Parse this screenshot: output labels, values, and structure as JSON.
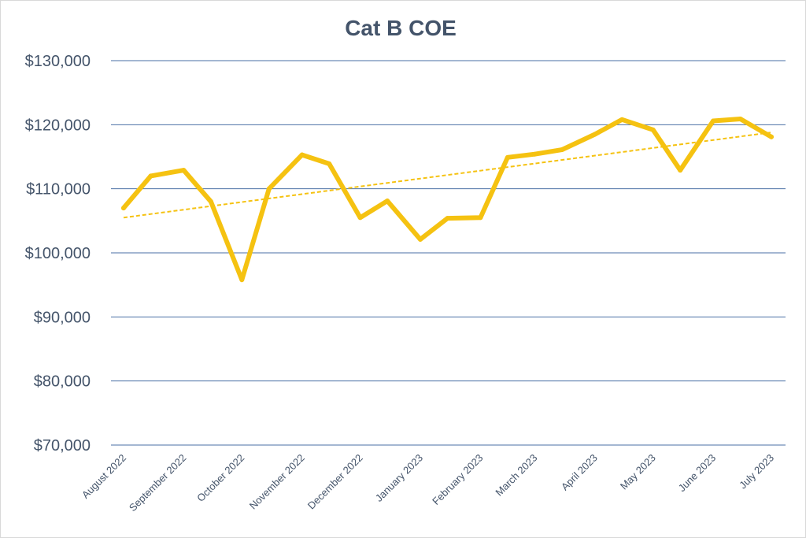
{
  "chart_data": {
    "type": "line",
    "title": "Cat B COE",
    "xlabel": "",
    "ylabel": "",
    "ylim": [
      70000,
      130000
    ],
    "yticks": [
      70000,
      80000,
      90000,
      100000,
      110000,
      120000,
      130000
    ],
    "ytick_labels": [
      "$70,000",
      "$80,000",
      "$90,000",
      "$100,000",
      "$110,000",
      "$120,000",
      "$130,000"
    ],
    "grid": true,
    "legend": "none",
    "colors": {
      "series": "#f5c211",
      "grid": "#4a6fa5",
      "text": "#44546a",
      "trend": "#f5c211"
    },
    "x": [
      "2022-08-01",
      "2022-08-15",
      "2022-09-01",
      "2022-09-15",
      "2022-10-01",
      "2022-10-15",
      "2022-11-01",
      "2022-11-15",
      "2022-12-01",
      "2022-12-15",
      "2023-01-01",
      "2023-01-15",
      "2023-02-01",
      "2023-02-15",
      "2023-03-01",
      "2023-03-15",
      "2023-04-01",
      "2023-04-15",
      "2023-05-01",
      "2023-05-15",
      "2023-06-01",
      "2023-06-15",
      "2023-07-01"
    ],
    "x_tick_labels": [
      "August 2022",
      "September 2022",
      "October 2022",
      "November 2022",
      "December 2022",
      "January 2023",
      "February 2023",
      "March 2023",
      "April 2023",
      "May 2023",
      "June 2023",
      "July 2023"
    ],
    "x_tick_dates": [
      "2022-08-01",
      "2022-09-01",
      "2022-10-01",
      "2022-11-01",
      "2022-12-01",
      "2023-01-01",
      "2023-02-01",
      "2023-03-01",
      "2023-04-01",
      "2023-05-01",
      "2023-06-01",
      "2023-07-01"
    ],
    "series": [
      {
        "values": [
          107000,
          112000,
          112900,
          108000,
          95800,
          110000,
          115300,
          113900,
          105500,
          108100,
          102100,
          105400,
          105500,
          114900,
          115400,
          116100,
          118500,
          120800,
          119200,
          112900,
          120600,
          120900,
          118100
        ]
      }
    ],
    "trendline": {
      "type": "linear",
      "style": "dashed",
      "start": [
        "2022-08-01",
        105500
      ],
      "end": [
        "2023-07-01",
        118800
      ]
    }
  }
}
